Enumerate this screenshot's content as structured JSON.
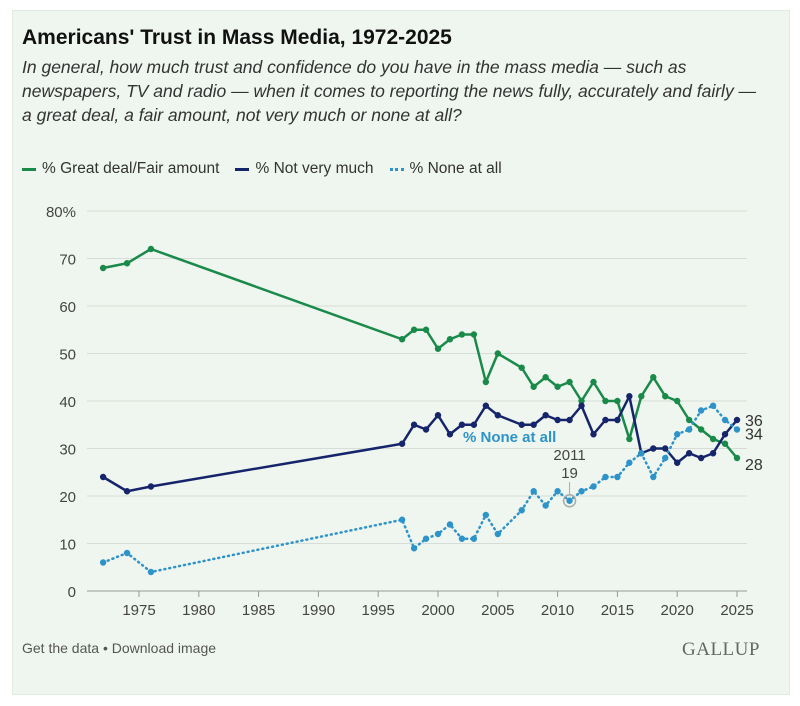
{
  "footer": {
    "get_data": "Get the data",
    "separator": "•",
    "download": "Download image",
    "logo": "GALLUP"
  },
  "chart_data": {
    "type": "line",
    "title": "Americans' Trust in Mass Media, 1972-2025",
    "subtitle": "In general, how much trust and confidence do you have in the mass media — such as newspapers, TV and radio — when it comes to reporting the news fully, accurately and fairly — a great deal, a fair amount, not very much or none at all?",
    "xlabel": "",
    "ylabel": "",
    "xlim": [
      1971,
      2026
    ],
    "ylim": [
      0,
      80
    ],
    "xticks": [
      1975,
      1980,
      1985,
      1990,
      1995,
      2000,
      2005,
      2010,
      2015,
      2020,
      2025
    ],
    "yticks": [
      {
        "v": 0,
        "l": "0"
      },
      {
        "v": 10,
        "l": "10"
      },
      {
        "v": 20,
        "l": "20"
      },
      {
        "v": 30,
        "l": "30"
      },
      {
        "v": 40,
        "l": "40"
      },
      {
        "v": 50,
        "l": "50"
      },
      {
        "v": 60,
        "l": "60"
      },
      {
        "v": 70,
        "l": "70"
      },
      {
        "v": 80,
        "l": "80%"
      }
    ],
    "grid": true,
    "legend_position": "top-left",
    "x": [
      1972,
      1974,
      1976,
      1997,
      1998,
      1999,
      2000,
      2001,
      2002,
      2003,
      2004,
      2005,
      2007,
      2008,
      2009,
      2010,
      2011,
      2012,
      2013,
      2014,
      2015,
      2016,
      2017,
      2018,
      2019,
      2020,
      2021,
      2022,
      2023,
      2024,
      2025
    ],
    "series": [
      {
        "name": "% Great deal/Fair amount",
        "color": "#1a8a4a",
        "style": "solid",
        "end_label": "28",
        "values": [
          68,
          69,
          72,
          53,
          55,
          55,
          51,
          53,
          54,
          54,
          44,
          50,
          47,
          43,
          45,
          43,
          44,
          40,
          44,
          40,
          40,
          32,
          41,
          45,
          41,
          40,
          36,
          34,
          32,
          31,
          28
        ]
      },
      {
        "name": "% Not very much",
        "color": "#15246b",
        "style": "solid",
        "end_label": "36",
        "values": [
          24,
          21,
          22,
          31,
          35,
          34,
          37,
          33,
          35,
          35,
          39,
          37,
          35,
          35,
          37,
          36,
          36,
          39,
          33,
          36,
          36,
          41,
          29,
          30,
          30,
          27,
          29,
          28,
          29,
          33,
          36
        ]
      },
      {
        "name": "% None at all",
        "color": "#2e93c9",
        "style": "dotted",
        "end_label": "34",
        "values": [
          6,
          8,
          4,
          15,
          9,
          11,
          12,
          14,
          11,
          11,
          16,
          12,
          17,
          21,
          18,
          21,
          19,
          21,
          22,
          24,
          24,
          27,
          29,
          24,
          28,
          33,
          34,
          38,
          39,
          36,
          34
        ]
      }
    ],
    "annotations": [
      {
        "text": "% None at all",
        "series": "% None at all"
      },
      {
        "text": "2011",
        "x": 2011
      },
      {
        "text": "19",
        "x": 2011,
        "y": 19
      }
    ]
  }
}
